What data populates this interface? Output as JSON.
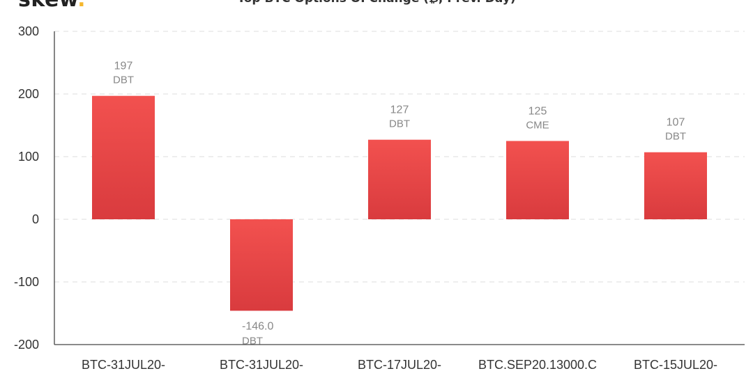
{
  "logo": {
    "text": "skew",
    "dot": "."
  },
  "chart_data": {
    "type": "bar",
    "title": "Top BTC Options OI Change (₿, Prev. Day)",
    "categories": [
      "BTC-31JUL20-",
      "BTC-31JUL20-",
      "BTC-17JUL20-",
      "BTC.SEP20.13000.C",
      "BTC-15JUL20-"
    ],
    "values": [
      197,
      -146.0,
      127,
      125,
      107
    ],
    "value_labels": [
      "197",
      "-146.0",
      "127",
      "125",
      "107"
    ],
    "exchanges": [
      "DBT",
      "DBT",
      "DBT",
      "CME",
      "DBT"
    ],
    "yticks": [
      300,
      200,
      100,
      0,
      -100,
      -200
    ],
    "ylim": [
      -200,
      300
    ],
    "grid": true,
    "bar_color_top": "#f2514f",
    "bar_color_bottom": "#d93b3e"
  }
}
